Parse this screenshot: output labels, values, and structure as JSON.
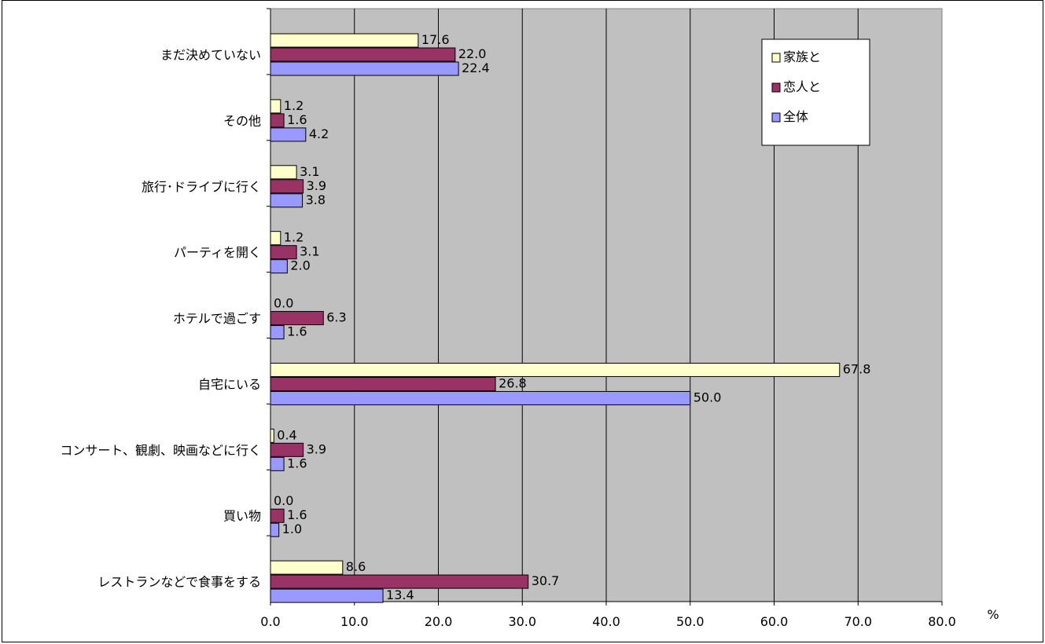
{
  "chart_data": {
    "type": "bar",
    "orientation": "horizontal",
    "categories": [
      "まだ決めていない",
      "その他",
      "旅行･ドライブに行く",
      "パーティを開く",
      "ホテルで過ごす",
      "自宅にいる",
      "コンサート、観劇、映画などに行く",
      "買い物",
      "レストランなどで食事をする"
    ],
    "series": [
      {
        "name": "家族と",
        "color": "#ffffcc",
        "values": [
          17.6,
          1.2,
          3.1,
          1.2,
          0.0,
          67.8,
          0.4,
          0.0,
          8.6
        ],
        "labels": [
          "17.6",
          "1.2",
          "3.1",
          "1.2",
          "0.0",
          "67.8",
          "0.4",
          "0.0",
          "8.6"
        ]
      },
      {
        "name": "恋人と",
        "color": "#993366",
        "values": [
          22.0,
          1.6,
          3.9,
          3.1,
          6.3,
          26.8,
          3.9,
          1.6,
          30.7
        ],
        "labels": [
          "22.0",
          "1.6",
          "3.9",
          "3.1",
          "6.3",
          "26.8",
          "3.9",
          "1.6",
          "30.7"
        ]
      },
      {
        "name": "全体",
        "color": "#9999ff",
        "values": [
          22.4,
          4.2,
          3.8,
          2.0,
          1.6,
          50.0,
          1.6,
          1.0,
          13.4
        ],
        "labels": [
          "22.4",
          "4.2",
          "3.8",
          "2.0",
          "1.6",
          "50.0",
          "1.6",
          "1.0",
          "13.4"
        ]
      }
    ],
    "xlim": [
      0,
      80
    ],
    "xticks": [
      "0.0",
      "10.0",
      "20.0",
      "30.0",
      "40.0",
      "50.0",
      "60.0",
      "70.0",
      "80.0"
    ],
    "xlabel": "",
    "ylabel": "",
    "unit": "%",
    "title": "",
    "plot_background": "#c0c0c0",
    "grid": true,
    "legend": "top-right"
  }
}
